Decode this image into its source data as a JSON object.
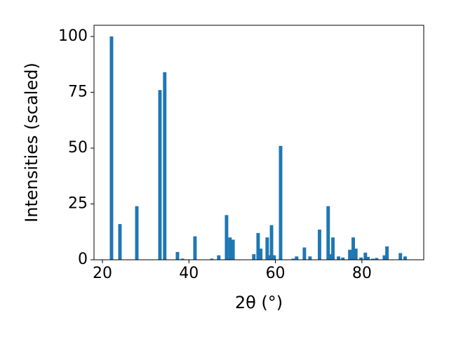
{
  "chart_data": {
    "type": "bar",
    "xlabel": "2θ (°)",
    "ylabel": "Intensities (scaled)",
    "color": "#1f77b4",
    "x": [
      22.1,
      24.05,
      27.95,
      33.3,
      34.4,
      37.35,
      38.5,
      41.4,
      45.3,
      46.9,
      48.7,
      49.5,
      50.2,
      55.0,
      56.0,
      56.6,
      58.1,
      58.6,
      59.1,
      59.7,
      61.2,
      64.1,
      64.9,
      66.7,
      68.0,
      70.2,
      72.2,
      72.7,
      73.3,
      74.6,
      75.6,
      77.2,
      78.0,
      78.6,
      79.8,
      80.8,
      81.4,
      82.5,
      83.4,
      85.2,
      85.8,
      88.9,
      90.0
    ],
    "values": [
      100,
      16,
      24,
      76,
      84,
      3.5,
      0.5,
      10.5,
      0.5,
      2,
      20,
      10,
      9,
      2.5,
      12,
      5,
      10,
      2,
      15.5,
      2,
      51,
      0.5,
      1.5,
      5.5,
      1.5,
      13.5,
      24,
      2.5,
      10,
      1.5,
      1,
      4.5,
      10,
      5,
      1,
      3.2,
      1.3,
      0.5,
      0.8,
      2,
      6,
      3,
      1.5
    ],
    "xlim": [
      18.05,
      94.3
    ],
    "ylim": [
      0,
      105
    ],
    "xticks": [
      20,
      40,
      60,
      80
    ],
    "yticks": [
      0,
      25,
      50,
      75,
      100
    ]
  }
}
